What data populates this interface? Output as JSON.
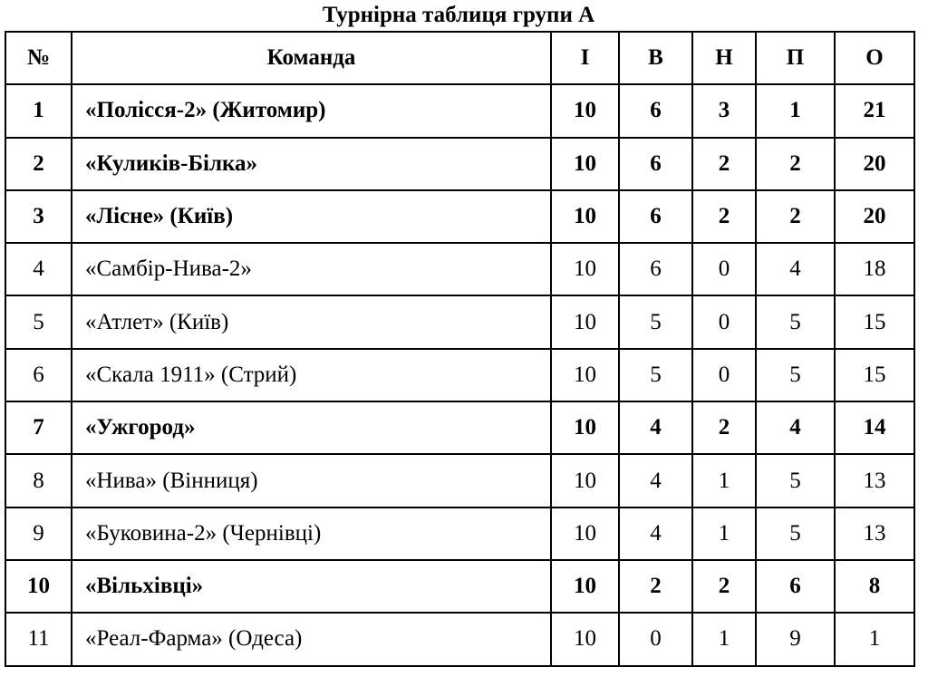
{
  "title": "Турнірна таблиця групи А",
  "headers": [
    "№",
    "Команда",
    "І",
    "В",
    "Н",
    "П",
    "О"
  ],
  "rows": [
    {
      "pos": "1",
      "team": "«Полісся-2» (Житомир)",
      "played": "10",
      "won": "6",
      "drawn": "3",
      "lost": "1",
      "points": "21",
      "bold": true
    },
    {
      "pos": "2",
      "team": "«Куликів-Білка»",
      "played": "10",
      "won": "6",
      "drawn": "2",
      "lost": "2",
      "points": "20",
      "bold": true
    },
    {
      "pos": "3",
      "team": "«Лісне» (Київ)",
      "played": "10",
      "won": "6",
      "drawn": "2",
      "lost": "2",
      "points": "20",
      "bold": true
    },
    {
      "pos": "4",
      "team": "«Самбір-Нива-2»",
      "played": "10",
      "won": "6",
      "drawn": "0",
      "lost": "4",
      "points": "18",
      "bold": false
    },
    {
      "pos": "5",
      "team": "«Атлет» (Київ)",
      "played": "10",
      "won": "5",
      "drawn": "0",
      "lost": "5",
      "points": "15",
      "bold": false
    },
    {
      "pos": "6",
      "team": "«Скала 1911» (Стрий)",
      "played": "10",
      "won": "5",
      "drawn": "0",
      "lost": "5",
      "points": "15",
      "bold": false
    },
    {
      "pos": "7",
      "team": "«Ужгород»",
      "played": "10",
      "won": "4",
      "drawn": "2",
      "lost": "4",
      "points": "14",
      "bold": true
    },
    {
      "pos": "8",
      "team": "«Нива» (Вінниця)",
      "played": "10",
      "won": "4",
      "drawn": "1",
      "lost": "5",
      "points": "13",
      "bold": false
    },
    {
      "pos": "9",
      "team": "«Буковина-2» (Чернівці)",
      "played": "10",
      "won": "4",
      "drawn": "1",
      "lost": "5",
      "points": "13",
      "bold": false
    },
    {
      "pos": "10",
      "team": "«Вільхівці»",
      "played": "10",
      "won": "2",
      "drawn": "2",
      "lost": "6",
      "points": "8",
      "bold": true
    },
    {
      "pos": "11",
      "team": "«Реал-Фарма» (Одеса)",
      "played": "10",
      "won": "0",
      "drawn": "1",
      "lost": "9",
      "points": "1",
      "bold": false
    }
  ]
}
